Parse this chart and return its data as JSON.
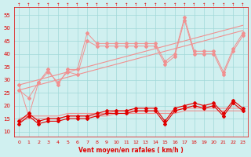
{
  "x": [
    0,
    1,
    2,
    3,
    4,
    5,
    6,
    7,
    8,
    9,
    10,
    11,
    12,
    13,
    14,
    15,
    16,
    17,
    18,
    19,
    20,
    21,
    22,
    23
  ],
  "line1_upper": [
    26,
    27,
    28,
    29,
    30,
    31,
    32,
    33,
    34,
    35,
    36,
    37,
    38,
    39,
    40,
    41,
    42,
    43,
    44,
    45,
    46,
    47,
    48,
    49
  ],
  "line2_upper": [
    28,
    29,
    30,
    31,
    32,
    33,
    34,
    35,
    36,
    37,
    38,
    39,
    40,
    41,
    42,
    43,
    44,
    45,
    46,
    47,
    48,
    49,
    50,
    51
  ],
  "series_light1": [
    26,
    23,
    29,
    34,
    28,
    34,
    34,
    48,
    44,
    44,
    44,
    44,
    44,
    44,
    44,
    37,
    40,
    54,
    41,
    41,
    41,
    33,
    42,
    48
  ],
  "series_light2": [
    28,
    16,
    29,
    33,
    29,
    33,
    32,
    45,
    43,
    43,
    43,
    43,
    43,
    43,
    43,
    36,
    39,
    53,
    40,
    40,
    40,
    32,
    41,
    47
  ],
  "series_dark1": [
    13,
    16,
    13,
    14,
    14,
    15,
    15,
    15,
    16,
    17,
    17,
    17,
    18,
    18,
    18,
    13,
    18,
    19,
    20,
    19,
    20,
    16,
    21,
    18
  ],
  "series_dark2": [
    14,
    17,
    14,
    15,
    15,
    16,
    16,
    16,
    17,
    18,
    18,
    18,
    19,
    19,
    19,
    14,
    19,
    20,
    21,
    20,
    21,
    17,
    22,
    19
  ],
  "line1_lower": [
    14,
    15,
    15,
    15,
    15,
    16,
    16,
    16,
    16,
    16,
    17,
    17,
    17,
    17,
    17,
    17,
    17,
    18,
    18,
    18,
    18,
    18,
    18,
    18
  ],
  "line2_lower": [
    15,
    16,
    16,
    16,
    16,
    17,
    17,
    17,
    17,
    17,
    18,
    18,
    18,
    18,
    18,
    18,
    18,
    19,
    19,
    19,
    19,
    19,
    19,
    19
  ],
  "bg_color": "#d0f0f0",
  "grid_color": "#a0d8d8",
  "line_color_light": "#f09090",
  "line_color_dark": "#e00000",
  "line_color_darkest": "#800000",
  "xlabel": "Vent moyen/en rafales ( km/h )",
  "ylabel_color": "#cc0000",
  "yticks": [
    10,
    15,
    20,
    25,
    30,
    35,
    40,
    45,
    50,
    55
  ],
  "ylim": [
    8,
    58
  ],
  "xlim": [
    -0.5,
    23.5
  ]
}
